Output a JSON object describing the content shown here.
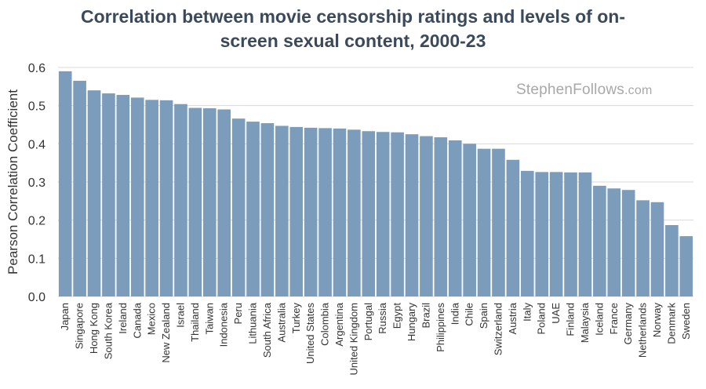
{
  "chart_data": {
    "type": "bar",
    "title_line1": "Correlation between movie censorship ratings and levels of on-",
    "title_line2": "screen sexual content, 2000-23",
    "xlabel": "",
    "ylabel": "Pearson Correlation Coefficient",
    "ylim": [
      0,
      0.6
    ],
    "yticks": [
      "0.0",
      "0.1",
      "0.2",
      "0.3",
      "0.4",
      "0.5",
      "0.6"
    ],
    "grid": true,
    "bar_color": "#7b9cba",
    "categories": [
      "Japan",
      "Singapore",
      "Hong Kong",
      "South Korea",
      "Ireland",
      "Canada",
      "Mexico",
      "New Zealand",
      "Israel",
      "Thailand",
      "Taiwan",
      "Indonesia",
      "Peru",
      "Lithuania",
      "South Africa",
      "Australia",
      "Turkey",
      "United States",
      "Colombia",
      "Argentina",
      "United Kingdom",
      "Portugal",
      "Russia",
      "Egypt",
      "Hungary",
      "Brazil",
      "Philippines",
      "India",
      "Chile",
      "Spain",
      "Switzerland",
      "Austria",
      "Italy",
      "Poland",
      "UAE",
      "Finland",
      "Malaysia",
      "Iceland",
      "France",
      "Germany",
      "Netherlands",
      "Norway",
      "Denmark",
      "Sweden"
    ],
    "values": [
      0.59,
      0.565,
      0.54,
      0.532,
      0.528,
      0.521,
      0.515,
      0.514,
      0.504,
      0.494,
      0.493,
      0.49,
      0.466,
      0.458,
      0.454,
      0.447,
      0.444,
      0.442,
      0.441,
      0.44,
      0.437,
      0.433,
      0.431,
      0.43,
      0.425,
      0.42,
      0.417,
      0.409,
      0.4,
      0.387,
      0.387,
      0.358,
      0.329,
      0.326,
      0.326,
      0.325,
      0.325,
      0.29,
      0.283,
      0.279,
      0.252,
      0.247,
      0.187,
      0.158
    ]
  },
  "watermark": {
    "name": "StephenFollows",
    "suffix": ".com"
  }
}
